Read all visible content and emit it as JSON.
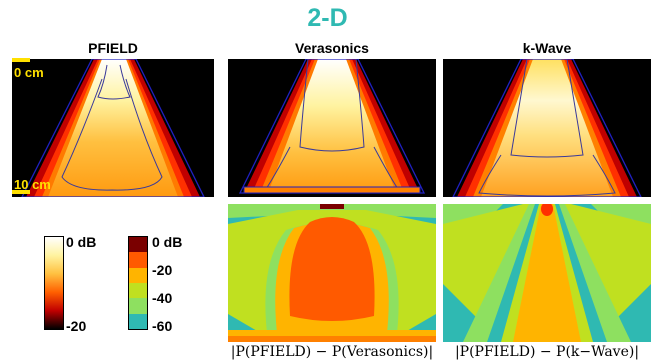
{
  "title": "2-D",
  "columns": [
    {
      "label": "PFIELD"
    },
    {
      "label": "Verasonics"
    },
    {
      "label": "k-Wave"
    }
  ],
  "depth_labels": [
    "0 cm",
    "10 cm"
  ],
  "colorbar_field": {
    "top": "0 dB",
    "bottom": "-20"
  },
  "colorbar_diff": {
    "labels": [
      "0 dB",
      "-20",
      "-40",
      "-60"
    ],
    "colors": [
      "#7a0000",
      "#ff5a00",
      "#ffb400",
      "#c0e020",
      "#8ee060",
      "#2fb9b2"
    ]
  },
  "diff_labels": [
    "|P(PFIELD) − P(Verasonics)|",
    "|P(PFIELD) − P(k−Wave)|"
  ]
}
